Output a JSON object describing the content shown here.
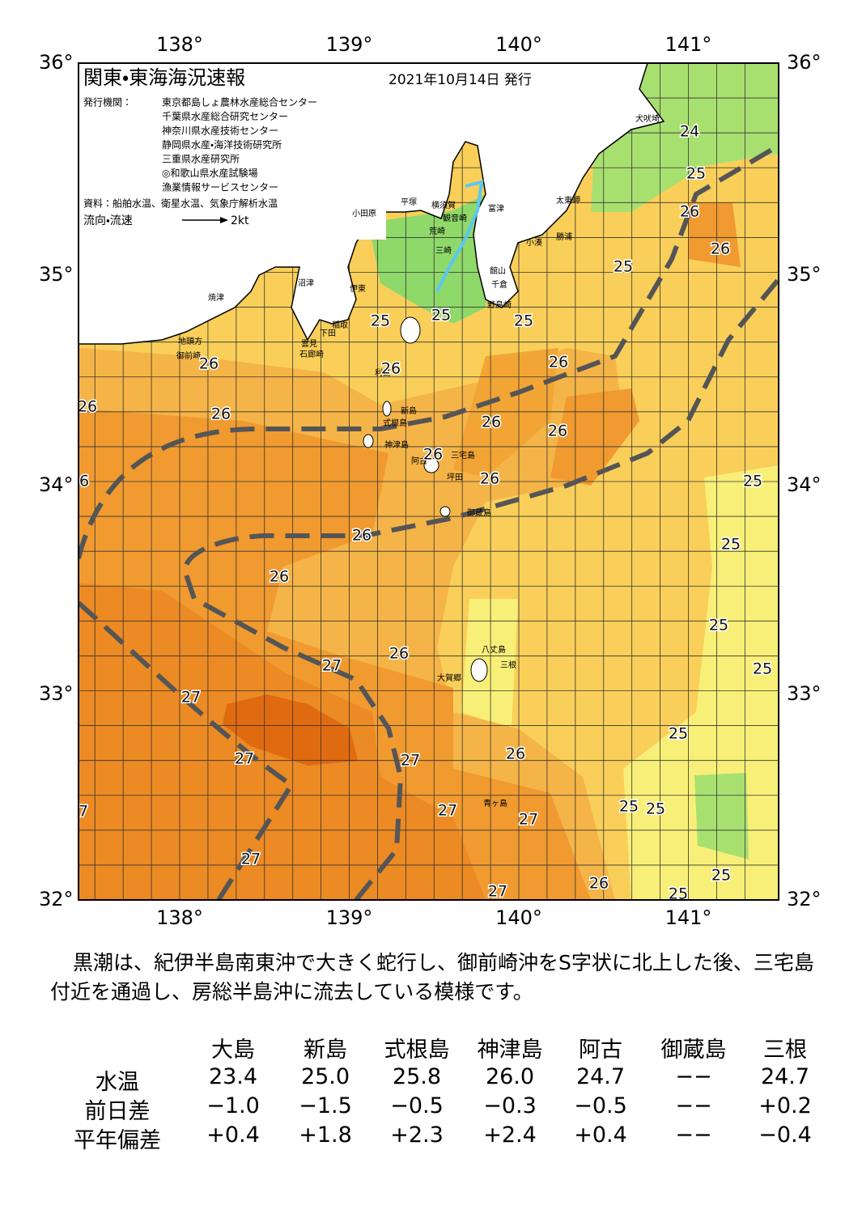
{
  "header": {
    "title": "関東・東海海況速報",
    "date": "2021年10月14日 発行"
  },
  "publishers": {
    "label": "発行機関：",
    "names": [
      "東京都島しょ農林水産総合センター",
      "千葉県水産総合研究センター",
      "神奈川県水産技術センター",
      "静岡県水産・海洋技術研究所",
      "三重県水産研究所",
      "◎和歌山県水産試験場",
      "漁業情報サービスセンター"
    ]
  },
  "source": "資料：船舶水温、衛星水温、気象庁解析水温",
  "legend": {
    "label": "流向・流速",
    "scale": "2kt"
  },
  "axes": {
    "lon_labels": [
      "138°",
      "139°",
      "140°",
      "141°"
    ],
    "lat_labels": [
      "36°",
      "35°",
      "34°",
      "33°",
      "32°"
    ]
  },
  "places": [
    "犬吠埼",
    "太東岬",
    "小湊",
    "勝浦",
    "館山",
    "千倉",
    "野島崎",
    "富津",
    "観音崎",
    "横須賀",
    "平塚",
    "小田原",
    "荒崎",
    "三崎",
    "沼津",
    "伊東",
    "焼津",
    "地頭方",
    "御前崎",
    "稲取",
    "下田",
    "雲見",
    "石廊崎",
    "利島",
    "新島",
    "式根島",
    "神津島",
    "阿古",
    "三宅島",
    "坪田",
    "御蔵島",
    "八丈島",
    "三根",
    "大賀郷",
    "青ヶ島"
  ],
  "isotherm_labels": [
    "24",
    "25",
    "26",
    "26",
    "25",
    "25",
    "25",
    "25",
    "26",
    "26",
    "26",
    "26",
    "26",
    "26",
    "26",
    "26",
    "26",
    "6",
    "25",
    "26",
    "25",
    "26",
    "25",
    "26",
    "27",
    "25",
    "27",
    "25",
    "27",
    "27",
    "26",
    "25",
    "25",
    "27",
    "27",
    "27",
    "25",
    "26",
    "27",
    "25",
    "7"
  ],
  "note": "黒潮は、紀伊半島南東沖で大きく蛇行し、御前崎沖をS字状に北上した後、三宅島付近を通過し、房総半島沖に流去している模様です。",
  "table": {
    "columns": [
      "大島",
      "新島",
      "式根島",
      "神津島",
      "阿古",
      "御蔵島",
      "三根"
    ],
    "rows": [
      {
        "label": "水温",
        "cells": [
          "23.4",
          "25.0",
          "25.8",
          "26.0",
          "24.7",
          "−−",
          "24.7"
        ]
      },
      {
        "label": "前日差",
        "cells": [
          "−1.0",
          "−1.5",
          "−0.5",
          "−0.3",
          "−0.5",
          "−−",
          "+0.2"
        ]
      },
      {
        "label": "平年偏差",
        "cells": [
          "+0.4",
          "+1.8",
          "+2.3",
          "+2.4",
          "+0.4",
          "−−",
          "−0.4"
        ]
      }
    ]
  }
}
